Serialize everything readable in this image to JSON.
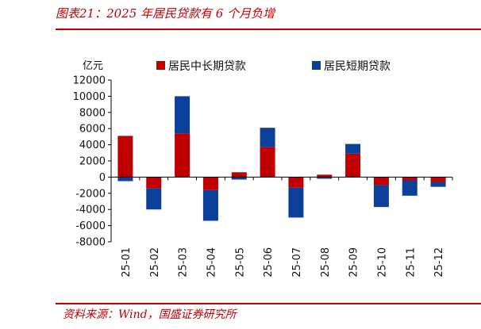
{
  "header": {
    "title": "图表21：2025 年居民贷款有 6 个月负增"
  },
  "footer": {
    "source": "资料来源：Wind，国盛证券研究所"
  },
  "colors": {
    "accent": "#c00000",
    "long_term": "#c00000",
    "short_term": "#0b3f9a"
  },
  "chart_data": {
    "type": "bar",
    "stacked": true,
    "unit_label": "亿元",
    "categories": [
      "25-01",
      "25-02",
      "25-03",
      "25-04",
      "25-05",
      "25-06",
      "25-07",
      "25-08",
      "25-09",
      "25-10",
      "25-11",
      "25-12"
    ],
    "series": [
      {
        "name": "居民中长期贷款",
        "color": "#c00000",
        "values": [
          5100,
          -1400,
          5400,
          -1600,
          600,
          3700,
          -1300,
          300,
          2900,
          -1000,
          -400,
          -600
        ]
      },
      {
        "name": "居民短期贷款",
        "color": "#0b3f9a",
        "values": [
          -500,
          -2600,
          4600,
          -3800,
          -300,
          2400,
          -3700,
          -200,
          1200,
          -2700,
          -1900,
          -600
        ]
      }
    ],
    "ylim": [
      -8000,
      12000
    ],
    "yticks": [
      12000,
      10000,
      8000,
      6000,
      4000,
      2000,
      0,
      -2000,
      -4000,
      -6000,
      -8000
    ],
    "legend_position": "top",
    "grid": false
  }
}
